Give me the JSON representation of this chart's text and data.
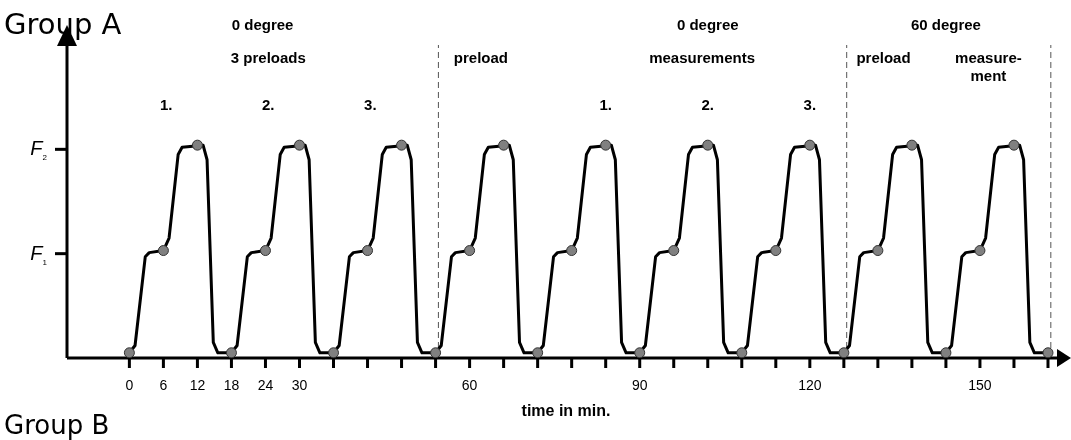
{
  "chart_data": {
    "type": "line",
    "title": "Group A",
    "xlabel": "time in min.",
    "xlim": [
      -11,
      165
    ],
    "ylim": [
      0,
      3.0
    ],
    "xticks": [
      0,
      6,
      12,
      18,
      24,
      30,
      {
        "value": 36,
        "label": null
      },
      {
        "value": 42,
        "label": null
      },
      {
        "value": 48,
        "label": null
      },
      {
        "value": 54,
        "label": null
      },
      60,
      {
        "value": 66,
        "label": null
      },
      {
        "value": 72,
        "label": null
      },
      {
        "value": 78,
        "label": null
      },
      {
        "value": 84,
        "label": null
      },
      90,
      {
        "value": 96,
        "label": null
      },
      {
        "value": 102,
        "label": null
      },
      {
        "value": 108,
        "label": null
      },
      {
        "value": 114,
        "label": null
      },
      120,
      {
        "value": 126,
        "label": null
      },
      {
        "value": 132,
        "label": null
      },
      {
        "value": 138,
        "label": null
      },
      {
        "value": 144,
        "label": null
      },
      150,
      {
        "value": 156,
        "label": null
      },
      {
        "value": 162,
        "label": null
      }
    ],
    "yticks": [
      {
        "value": 1,
        "label": "F$_{1}$"
      },
      {
        "value": 2,
        "label": "F$_{2}$"
      }
    ],
    "series": [
      {
        "color": "#000000",
        "x": [
          0,
          1,
          2.8,
          3.5,
          6,
          7,
          8.6,
          9.3,
          13,
          13.7,
          14.8,
          15.6,
          18,
          19,
          20.8,
          21.5,
          24,
          25,
          26.6,
          27.3,
          31,
          31.7,
          32.8,
          33.6,
          36,
          37,
          38.8,
          39.5,
          42,
          43,
          44.6,
          45.3,
          49,
          49.7,
          50.8,
          51.6,
          54,
          55,
          56.8,
          57.5,
          60,
          61,
          62.6,
          63.3,
          67,
          67.7,
          68.8,
          69.6,
          72,
          73,
          74.8,
          75.5,
          78,
          79,
          80.6,
          81.3,
          85,
          85.7,
          86.8,
          87.6,
          90,
          91,
          92.8,
          93.5,
          96,
          97,
          98.6,
          99.3,
          103,
          103.7,
          104.8,
          105.6,
          108,
          109,
          110.8,
          111.5,
          114,
          115,
          116.6,
          117.3,
          121,
          121.7,
          122.8,
          123.6,
          126,
          127,
          128.8,
          129.5,
          132,
          133,
          134.6,
          135.3,
          139,
          139.7,
          140.8,
          141.6,
          144,
          145,
          146.8,
          147.5,
          150,
          151,
          152.6,
          153.3,
          157,
          157.7,
          158.8,
          159.6,
          162
        ],
        "values": [
          0.05,
          0.12,
          0.97,
          1.01,
          1.03,
          1.15,
          1.95,
          2.02,
          2.04,
          1.9,
          0.15,
          0.05,
          0.05,
          0.12,
          0.97,
          1.01,
          1.03,
          1.15,
          1.95,
          2.02,
          2.04,
          1.9,
          0.15,
          0.05,
          0.05,
          0.12,
          0.97,
          1.01,
          1.03,
          1.15,
          1.95,
          2.02,
          2.04,
          1.9,
          0.15,
          0.05,
          0.05,
          0.12,
          0.97,
          1.01,
          1.03,
          1.15,
          1.95,
          2.02,
          2.04,
          1.9,
          0.15,
          0.05,
          0.05,
          0.12,
          0.97,
          1.01,
          1.03,
          1.15,
          1.95,
          2.02,
          2.04,
          1.9,
          0.15,
          0.05,
          0.05,
          0.12,
          0.97,
          1.01,
          1.03,
          1.15,
          1.95,
          2.02,
          2.04,
          1.9,
          0.15,
          0.05,
          0.05,
          0.12,
          0.97,
          1.01,
          1.03,
          1.15,
          1.95,
          2.02,
          2.04,
          1.9,
          0.15,
          0.05,
          0.05,
          0.12,
          0.97,
          1.01,
          1.03,
          1.15,
          1.95,
          2.02,
          2.04,
          1.9,
          0.15,
          0.05,
          0.05,
          0.12,
          0.97,
          1.01,
          1.03,
          1.15,
          1.95,
          2.02,
          2.04,
          1.9,
          0.15,
          0.05,
          0.05
        ]
      },
      {
        "type": "scatter",
        "color": "#808080",
        "marker": "circle",
        "x": [
          0,
          6,
          12,
          18,
          24,
          30,
          36,
          42,
          48,
          54,
          60,
          66,
          72,
          78,
          84,
          90,
          96,
          102,
          108,
          114,
          120,
          126,
          132,
          138,
          144,
          150,
          156,
          162
        ],
        "values": [
          0.05,
          1.03,
          2.04,
          0.05,
          1.03,
          2.04,
          0.05,
          1.03,
          2.04,
          0.05,
          1.03,
          2.04,
          0.05,
          1.03,
          2.04,
          0.05,
          1.03,
          2.04,
          0.05,
          1.03,
          2.04,
          0.05,
          1.03,
          2.04,
          0.05,
          1.03,
          2.04,
          0.05
        ]
      }
    ],
    "ref_lines": [
      {
        "axis": "x",
        "value": 54.5,
        "color": "#555555",
        "line_style": "dashed"
      },
      {
        "axis": "x",
        "value": 126.5,
        "color": "#555555",
        "line_style": "dashed"
      },
      {
        "axis": "x",
        "value": 162.5,
        "color": "#555555",
        "line_style": "dashed"
      }
    ],
    "annotations": [
      "0 degree",
      "3 preloads",
      "1.",
      "2.",
      "3.",
      "0 degree",
      "preload",
      "measurements",
      "1.",
      "2.",
      "3.",
      "60 degree",
      "preload",
      "measure-\nment",
      "Group B"
    ]
  }
}
